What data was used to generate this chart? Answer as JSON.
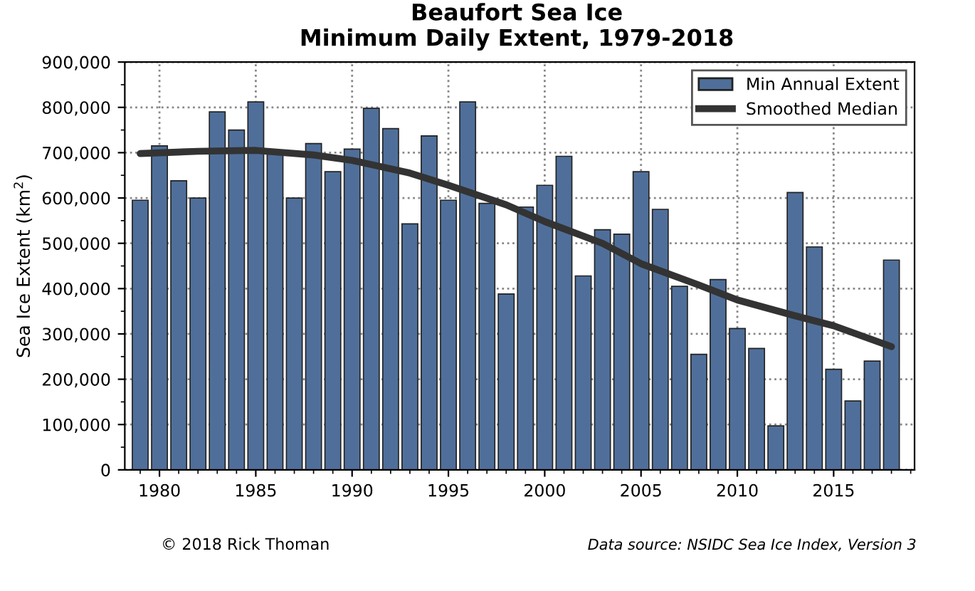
{
  "chart_data": {
    "type": "bar",
    "title": "Beaufort Sea Ice\nMinimum Daily Extent, 1979-2018",
    "ylabel": "Sea Ice Extent (km$^{2}$)",
    "x": [
      1979,
      1980,
      1981,
      1982,
      1983,
      1984,
      1985,
      1986,
      1987,
      1988,
      1989,
      1990,
      1991,
      1992,
      1993,
      1994,
      1995,
      1996,
      1997,
      1998,
      1999,
      2000,
      2001,
      2002,
      2003,
      2004,
      2005,
      2006,
      2007,
      2008,
      2009,
      2010,
      2011,
      2012,
      2013,
      2014,
      2015,
      2016,
      2017,
      2018
    ],
    "series": [
      {
        "name": "Min Annual Extent",
        "color": "#4f6f9a",
        "values": [
          595000,
          715000,
          638000,
          600000,
          790000,
          750000,
          812000,
          700000,
          600000,
          720000,
          658000,
          708000,
          798000,
          753000,
          543000,
          737000,
          595000,
          812000,
          588000,
          388000,
          580000,
          628000,
          692000,
          428000,
          530000,
          520000,
          658000,
          575000,
          405000,
          255000,
          420000,
          312000,
          268000,
          97000,
          612000,
          492000,
          222000,
          152000,
          240000,
          463000
        ]
      },
      {
        "name": "Smoothed Median",
        "type": "line",
        "color": "#333333",
        "x": [
          1979,
          1982,
          1985,
          1988,
          1990,
          1993,
          1995,
          1998,
          2000,
          2003,
          2005,
          2008,
          2010,
          2013,
          2015,
          2018
        ],
        "values": [
          698000,
          703000,
          705000,
          695000,
          683000,
          655000,
          628000,
          585000,
          548000,
          500000,
          455000,
          408000,
          375000,
          340000,
          318000,
          272000
        ]
      }
    ],
    "xlim": [
      1978.2,
      2019.2
    ],
    "xticks": [
      1980,
      1985,
      1990,
      1995,
      2000,
      2005,
      2010,
      2015
    ],
    "ylim": [
      0,
      900000
    ],
    "yticks": [
      0,
      {
        "value": 100000,
        "label": "100,000"
      },
      {
        "value": 200000,
        "label": "200,000"
      },
      {
        "value": 300000,
        "label": "300,000"
      },
      {
        "value": 400000,
        "label": "400,000"
      },
      {
        "value": 500000,
        "label": "500,000"
      },
      {
        "value": 600000,
        "label": "600,000"
      },
      {
        "value": 700000,
        "label": "700,000"
      },
      {
        "value": 800000,
        "label": "800,000"
      },
      {
        "value": 900000,
        "label": "900,000"
      }
    ],
    "grid": true,
    "legend": "top right",
    "annotations": [
      "© 2018 Rick Thoman",
      "Data source: NSIDC Sea Ice Index, Version 3"
    ]
  }
}
